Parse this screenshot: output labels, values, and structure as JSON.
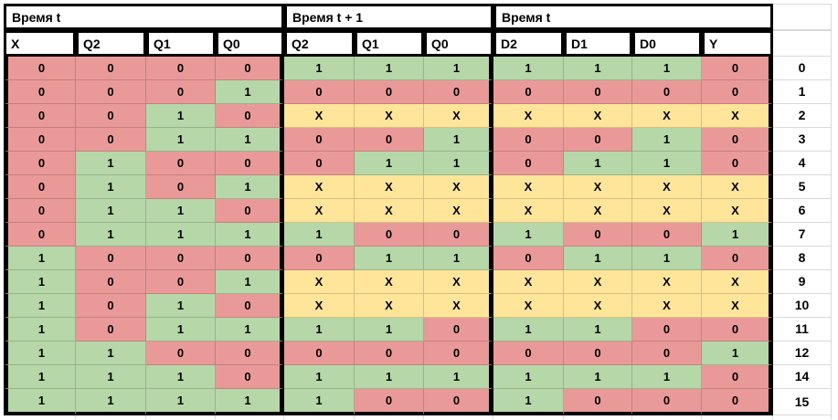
{
  "table": {
    "groups": [
      {
        "title": "Время t",
        "columns": [
          "X",
          "Q2",
          "Q1",
          "Q0"
        ]
      },
      {
        "title": "Время t + 1",
        "columns": [
          "Q2",
          "Q1",
          "Q0"
        ]
      },
      {
        "title": "Время t",
        "columns": [
          "D2",
          "D1",
          "D0",
          "Y"
        ]
      }
    ],
    "rows": [
      {
        "label": "0",
        "cells": [
          "0",
          "0",
          "0",
          "0",
          "1",
          "1",
          "1",
          "1",
          "1",
          "1",
          "0"
        ]
      },
      {
        "label": "1",
        "cells": [
          "0",
          "0",
          "0",
          "1",
          "0",
          "0",
          "0",
          "0",
          "0",
          "0",
          "0"
        ]
      },
      {
        "label": "2",
        "cells": [
          "0",
          "0",
          "1",
          "0",
          "X",
          "X",
          "X",
          "X",
          "X",
          "X",
          "X"
        ]
      },
      {
        "label": "3",
        "cells": [
          "0",
          "0",
          "1",
          "1",
          "0",
          "0",
          "1",
          "0",
          "0",
          "1",
          "0"
        ]
      },
      {
        "label": "4",
        "cells": [
          "0",
          "1",
          "0",
          "0",
          "0",
          "1",
          "1",
          "0",
          "1",
          "1",
          "0"
        ]
      },
      {
        "label": "5",
        "cells": [
          "0",
          "1",
          "0",
          "1",
          "X",
          "X",
          "X",
          "X",
          "X",
          "X",
          "X"
        ]
      },
      {
        "label": "6",
        "cells": [
          "0",
          "1",
          "1",
          "0",
          "X",
          "X",
          "X",
          "X",
          "X",
          "X",
          "X"
        ]
      },
      {
        "label": "7",
        "cells": [
          "0",
          "1",
          "1",
          "1",
          "1",
          "0",
          "0",
          "1",
          "0",
          "0",
          "1"
        ]
      },
      {
        "label": "8",
        "cells": [
          "1",
          "0",
          "0",
          "0",
          "0",
          "1",
          "1",
          "0",
          "1",
          "1",
          "0"
        ]
      },
      {
        "label": "9",
        "cells": [
          "1",
          "0",
          "0",
          "1",
          "X",
          "X",
          "X",
          "X",
          "X",
          "X",
          "X"
        ]
      },
      {
        "label": "10",
        "cells": [
          "1",
          "0",
          "1",
          "0",
          "X",
          "X",
          "X",
          "X",
          "X",
          "X",
          "X"
        ]
      },
      {
        "label": "11",
        "cells": [
          "1",
          "0",
          "1",
          "1",
          "1",
          "1",
          "0",
          "1",
          "1",
          "0",
          "0"
        ]
      },
      {
        "label": "12",
        "cells": [
          "1",
          "1",
          "0",
          "0",
          "0",
          "0",
          "0",
          "0",
          "0",
          "0",
          "1"
        ]
      },
      {
        "label": "14",
        "cells": [
          "1",
          "1",
          "1",
          "0",
          "1",
          "1",
          "1",
          "1",
          "1",
          "1",
          "0"
        ]
      },
      {
        "label": "15",
        "cells": [
          "1",
          "1",
          "1",
          "1",
          "1",
          "0",
          "0",
          "1",
          "0",
          "0",
          "0"
        ]
      }
    ]
  },
  "colors": {
    "zero_fill": "#ea9999",
    "one_fill": "#b6d7a8",
    "dontcare_fill": "#ffe599",
    "border_black": "#000000",
    "gridline": "#d9d9d9"
  }
}
